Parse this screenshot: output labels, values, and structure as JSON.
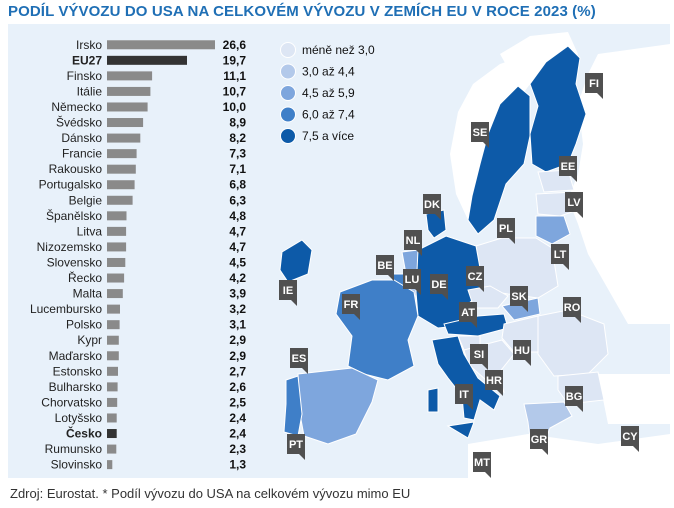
{
  "title": "PODÍL VÝVOZU DO USA NA CELKOVÉM VÝVOZU V ZEMÍCH EU V ROCE 2023 (%)",
  "source": "Zdroj: Eurostat. * Podíl vývozu do USA na celkovém vývozu mimo EU",
  "colors": {
    "accent": "#1f6fb5",
    "panel_bg": "#e8f1fa",
    "bar_default": "#8a8a8a",
    "bar_highlight": "#333333",
    "label_box": "#505050"
  },
  "legend": {
    "items": [
      {
        "label": "méně než 3,0",
        "color": "#dde6f4"
      },
      {
        "label": "3,0 až 4,4",
        "color": "#b3c9ea"
      },
      {
        "label": "4,5 až 5,9",
        "color": "#7ea6dd"
      },
      {
        "label": "6,0 až 7,4",
        "color": "#3f7fc8"
      },
      {
        "label": "7,5 a více",
        "color": "#0d5aa8"
      }
    ]
  },
  "chart_data": {
    "type": "bar",
    "orientation": "horizontal",
    "categories": [
      "Irsko",
      "EU27",
      "Finsko",
      "Itálie",
      "Německo",
      "Švédsko",
      "Dánsko",
      "Francie",
      "Rakousko",
      "Portugalsko",
      "Belgie",
      "Španělsko",
      "Litva",
      "Nizozemsko",
      "Slovensko",
      "Řecko",
      "Malta",
      "Lucembursko",
      "Polsko",
      "Kypr",
      "Maďarsko",
      "Estonsko",
      "Bulharsko",
      "Chorvatsko",
      "Lotyšsko",
      "Česko",
      "Rumunsko",
      "Slovinsko"
    ],
    "values": [
      26.6,
      19.7,
      11.1,
      10.7,
      10.0,
      8.9,
      8.2,
      7.3,
      7.1,
      6.8,
      6.3,
      4.8,
      4.7,
      4.7,
      4.5,
      4.2,
      3.9,
      3.2,
      3.1,
      2.9,
      2.9,
      2.7,
      2.6,
      2.5,
      2.4,
      2.4,
      2.3,
      1.3
    ],
    "value_labels": [
      "26,6",
      "19,7",
      "11,1",
      "10,7",
      "10,0",
      "8,9",
      "8,2",
      "7,3",
      "7,1",
      "6,8",
      "6,3",
      "4,8",
      "4,7",
      "4,7",
      "4,5",
      "4,2",
      "3,9",
      "3,2",
      "3,1",
      "2,9",
      "2,9",
      "2,7",
      "2,6",
      "2,5",
      "2,4",
      "2,4",
      "2,3",
      "1,3"
    ],
    "highlighted": [
      "EU27",
      "Česko"
    ],
    "xlim": [
      0,
      26.6
    ]
  },
  "map_labels": [
    "FI",
    "SE",
    "EE",
    "LV",
    "LT",
    "DK",
    "PL",
    "NL",
    "BE",
    "LU",
    "DE",
    "CZ",
    "SK",
    "IE",
    "FR",
    "AT",
    "RO",
    "HU",
    "SI",
    "HR",
    "ES",
    "IT",
    "BG",
    "PT",
    "GR",
    "CY",
    "MT"
  ]
}
